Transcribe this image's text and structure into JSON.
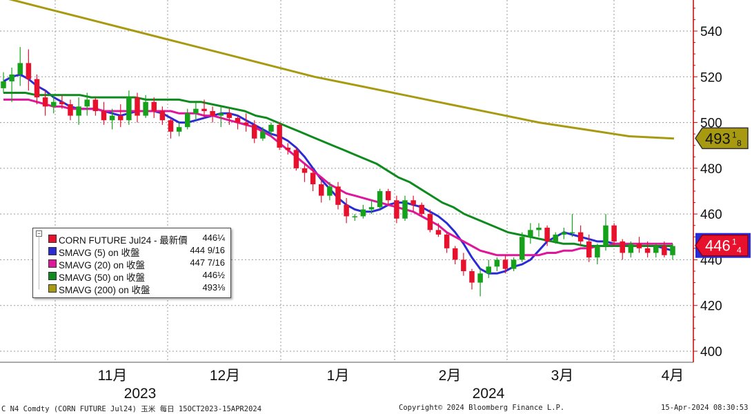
{
  "chart_data": {
    "type": "candlestick",
    "y_axis": {
      "ticks": [
        400,
        420,
        440,
        460,
        480,
        500,
        520,
        540
      ],
      "side": "right",
      "color": "#cc0000"
    },
    "x_axis": {
      "month_labels": [
        "11月",
        "12月",
        "1月",
        "2月",
        "3月",
        "4月"
      ],
      "year_labels": [
        "2023",
        "2024"
      ]
    },
    "grid": true,
    "ohlc": [
      [
        515,
        522,
        513,
        518
      ],
      [
        518,
        524,
        509,
        521
      ],
      [
        521,
        533,
        516,
        526
      ],
      [
        526,
        532,
        514,
        519
      ],
      [
        519,
        521,
        508,
        511
      ],
      [
        511,
        514,
        503,
        507
      ],
      [
        507,
        512,
        504,
        509
      ],
      [
        509,
        512,
        506,
        508
      ],
      [
        508,
        510,
        501,
        503
      ],
      [
        503,
        511,
        499,
        507
      ],
      [
        507,
        513,
        503,
        510
      ],
      [
        510,
        511,
        503,
        505
      ],
      [
        505,
        509,
        499,
        501
      ],
      [
        501,
        506,
        497,
        503
      ],
      [
        503,
        508,
        498,
        501
      ],
      [
        501,
        514,
        499,
        511
      ],
      [
        511,
        513,
        500,
        503
      ],
      [
        503,
        512,
        502,
        509
      ],
      [
        509,
        511,
        502,
        505
      ],
      [
        505,
        507,
        499,
        501
      ],
      [
        501,
        502,
        493,
        496
      ],
      [
        496,
        500,
        494,
        498
      ],
      [
        498,
        506,
        497,
        504
      ],
      [
        504,
        509,
        501,
        506
      ],
      [
        506,
        510,
        502,
        505
      ],
      [
        505,
        507,
        500,
        503
      ],
      [
        503,
        507,
        498,
        504
      ],
      [
        504,
        506,
        499,
        502
      ],
      [
        502,
        503,
        497,
        500
      ],
      [
        500,
        504,
        496,
        499
      ],
      [
        499,
        501,
        491,
        493
      ],
      [
        493,
        498,
        492,
        496
      ],
      [
        496,
        500,
        494,
        499
      ],
      [
        499,
        500,
        488,
        489
      ],
      [
        489,
        491,
        486,
        488
      ],
      [
        488,
        489,
        479,
        480
      ],
      [
        480,
        482,
        474,
        478
      ],
      [
        478,
        480,
        470,
        473
      ],
      [
        473,
        476,
        465,
        468
      ],
      [
        468,
        474,
        466,
        472
      ],
      [
        472,
        474,
        462,
        464
      ],
      [
        464,
        467,
        456,
        459
      ],
      [
        459,
        460,
        457,
        459
      ],
      [
        459,
        464,
        458,
        462
      ],
      [
        462,
        466,
        460,
        463
      ],
      [
        463,
        471,
        462,
        470
      ],
      [
        470,
        471,
        464,
        466
      ],
      [
        466,
        468,
        456,
        458
      ],
      [
        458,
        468,
        457,
        466
      ],
      [
        466,
        468,
        461,
        464
      ],
      [
        464,
        465,
        459,
        460
      ],
      [
        460,
        462,
        452,
        453
      ],
      [
        453,
        456,
        450,
        451
      ],
      [
        451,
        452,
        443,
        445
      ],
      [
        445,
        446,
        438,
        440
      ],
      [
        440,
        443,
        433,
        435
      ],
      [
        435,
        436,
        427,
        430
      ],
      [
        430,
        436,
        424,
        434
      ],
      [
        434,
        440,
        432,
        437
      ],
      [
        437,
        441,
        435,
        440
      ],
      [
        440,
        442,
        434,
        436
      ],
      [
        436,
        441,
        435,
        440
      ],
      [
        440,
        452,
        439,
        450
      ],
      [
        450,
        456,
        447,
        453
      ],
      [
        453,
        456,
        450,
        454
      ],
      [
        454,
        455,
        446,
        448
      ],
      [
        448,
        452,
        447,
        451
      ],
      [
        451,
        454,
        449,
        452
      ],
      [
        452,
        460,
        450,
        452
      ],
      [
        452,
        455,
        446,
        448
      ],
      [
        448,
        451,
        439,
        441
      ],
      [
        441,
        447,
        438,
        446
      ],
      [
        446,
        460,
        444,
        455
      ],
      [
        455,
        456,
        446,
        448
      ],
      [
        448,
        449,
        440,
        443
      ],
      [
        443,
        448,
        441,
        447
      ],
      [
        447,
        450,
        443,
        445
      ],
      [
        445,
        448,
        441,
        443
      ],
      [
        443,
        447,
        441,
        446
      ],
      [
        446,
        448,
        441,
        442
      ],
      [
        442,
        447,
        440,
        446
      ]
    ],
    "series": [
      {
        "name": "SMAVG (5)  on 收盤",
        "color": "#2b2bd6",
        "values": [
          518,
          520,
          521,
          519,
          516,
          514,
          511,
          509,
          507,
          506,
          506,
          506,
          505,
          504,
          503,
          504,
          505,
          505,
          505,
          504,
          502,
          500,
          500,
          501,
          502,
          503,
          504,
          504,
          503,
          501,
          499,
          497,
          495,
          494,
          492,
          489,
          485,
          480,
          475,
          471,
          467,
          464,
          462,
          461,
          461,
          462,
          464,
          465,
          465,
          464,
          463,
          461,
          459,
          456,
          452,
          447,
          441,
          436,
          434,
          434,
          435,
          437,
          438,
          440,
          444,
          448,
          450,
          452,
          451,
          450,
          449,
          448,
          448,
          447,
          447,
          446,
          446,
          446,
          446,
          445,
          444
        ]
      },
      {
        "name": "SMAVG (20)  on 收盤",
        "color": "#e0169a",
        "values": [
          510,
          510,
          510,
          510,
          509,
          508,
          507,
          507,
          506,
          506,
          506,
          506,
          505,
          505,
          505,
          505,
          505,
          505,
          505,
          505,
          505,
          504,
          504,
          504,
          503,
          503,
          502,
          501,
          500,
          499,
          498,
          496,
          494,
          491,
          488,
          485,
          482,
          479,
          476,
          473,
          471,
          469,
          468,
          467,
          466,
          465,
          464,
          463,
          462,
          461,
          459,
          457,
          455,
          452,
          450,
          448,
          446,
          444,
          443,
          442,
          442,
          442,
          442,
          442,
          442,
          443,
          443,
          444,
          444,
          445,
          445,
          446,
          446,
          447,
          447,
          447,
          447,
          447,
          447,
          447,
          447
        ]
      },
      {
        "name": "SMAVG (50)  on 收盤",
        "color": "#0e8a1e",
        "values": [
          513,
          513,
          513,
          512,
          512,
          512,
          512,
          512,
          511,
          511,
          511,
          511,
          511,
          510,
          510,
          510,
          510,
          509,
          509,
          508,
          507,
          506,
          505,
          503,
          502,
          500,
          498,
          496,
          494,
          492,
          490,
          488,
          486,
          484,
          482,
          479,
          476,
          474,
          471,
          468,
          465,
          463,
          460,
          458,
          456,
          454,
          452,
          451,
          450,
          449,
          448,
          447,
          447,
          446,
          446,
          446,
          446,
          446,
          446,
          446,
          446,
          446
        ]
      },
      {
        "name": "SMAVG (200)  on 收盤",
        "color": "#a89a10",
        "values": [
          555,
          550,
          545,
          540,
          535,
          530,
          525,
          520,
          516,
          512,
          508,
          504,
          500,
          497,
          494,
          493
        ]
      }
    ],
    "last_price": {
      "value": "446",
      "fraction_num": "1",
      "fraction_den": "4",
      "color": "#e8112d"
    },
    "sma200_tag": {
      "value": "493",
      "fraction_num": "1",
      "fraction_den": "8",
      "color": "#a89a10"
    }
  },
  "legend": [
    {
      "label": "CORN FUTURE Jul24 - 最新價",
      "value": "446¼",
      "color": "#e8112d"
    },
    {
      "label": "SMAVG (5)  on 收盤",
      "value": "444 9/16",
      "color": "#2b2bd6"
    },
    {
      "label": "SMAVG (20)  on 收盤",
      "value": "447 7/16",
      "color": "#e0169a"
    },
    {
      "label": "SMAVG (50)  on 收盤",
      "value": "446½",
      "color": "#0e8a1e"
    },
    {
      "label": "SMAVG (200)  on 收盤",
      "value": "493⅛",
      "color": "#a89a10"
    }
  ],
  "footer": {
    "left": "C N4 Comdty (CORN FUTURE      Jul24) 玉米  每日 15OCT2023-15APR2024",
    "center": "Copyright© 2024 Bloomberg Finance L.P.",
    "right": "15-Apr-2024 08:30:53"
  }
}
